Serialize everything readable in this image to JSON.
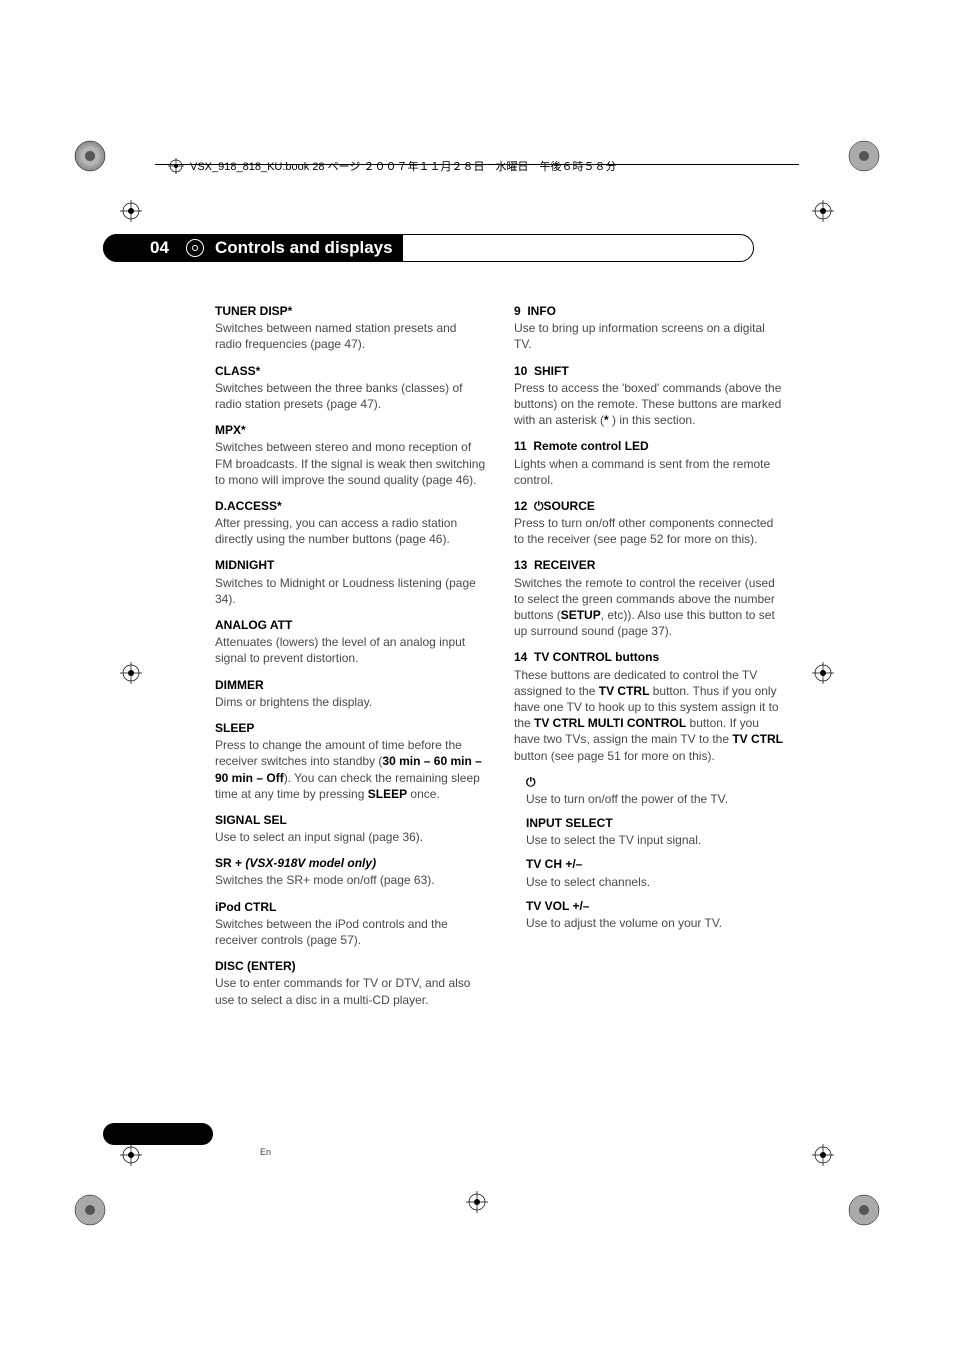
{
  "header": {
    "filename": "VSX_918_818_KU.book  28 ページ  ２００７年１１月２８日　水曜日　午後６時５８分"
  },
  "chapter": {
    "number": "04",
    "title": "Controls and displays"
  },
  "left_col": [
    {
      "title": "TUNER DISP*",
      "body": "Switches between named station presets and radio frequencies (page 47)."
    },
    {
      "title": "CLASS*",
      "body": "Switches between the three banks (classes) of radio station presets (page 47)."
    },
    {
      "title": "MPX*",
      "body": "Switches between stereo and mono reception of FM broadcasts. If the signal is weak then switching to mono will improve the sound quality (page 46)."
    },
    {
      "title": "D.ACCESS*",
      "body": "After pressing, you can access a radio station directly using the number buttons (page 46)."
    },
    {
      "title": "MIDNIGHT",
      "body": "Switches to Midnight or Loudness listening (page 34)."
    },
    {
      "title": "ANALOG ATT",
      "body": "Attenuates (lowers) the level of an analog input signal to prevent distortion."
    },
    {
      "title": "DIMMER",
      "body": "Dims or brightens the display."
    },
    {
      "title": "SLEEP",
      "body_html": "Press to change the amount of time before the receiver switches into standby (<b>30 min – 60 min – 90 min – Off</b>). You can check the remaining sleep time at any time by pressing <b>SLEEP</b> once."
    },
    {
      "title": "SIGNAL SEL",
      "body": "Use to select an input signal (page 36)."
    },
    {
      "title_html": "<b>SR +</b> <i>(VSX-918V model only)</i>",
      "body": "Switches the SR+ mode on/off (page 63)."
    },
    {
      "title": "iPod CTRL",
      "body": "Switches between the iPod controls and the receiver controls (page 57)."
    },
    {
      "title": "DISC (ENTER)",
      "body": "Use to enter commands for TV or DTV, and also use to select a disc in a multi-CD player."
    }
  ],
  "right_col": [
    {
      "num": "9",
      "title": "INFO",
      "body": "Use to bring up information screens on a digital TV."
    },
    {
      "num": "10",
      "title": "SHIFT",
      "body_html": "Press to access the 'boxed' commands (above the buttons) on the remote. These buttons are marked with an asterisk (<b>*</b> ) in this section."
    },
    {
      "num": "11",
      "title": "Remote control LED",
      "body": "Lights when a command is sent from the remote control."
    },
    {
      "num": "12",
      "title_html": "⏻<b>SOURCE</b>",
      "body": "Press to turn on/off other components connected to the receiver (see page 52 for more on this)."
    },
    {
      "num": "13",
      "title": "RECEIVER",
      "body_html": "Switches the remote to control the receiver (used to select the green commands above the number buttons (<b>SETUP</b>, etc)). Also use this button to set up surround sound (page 37)."
    },
    {
      "num": "14",
      "title": "TV CONTROL buttons",
      "body_html": "These buttons are dedicated to control the TV assigned to the <b>TV CTRL</b> button. Thus if you only have one TV to hook up to this system assign it to the <b>TV CTRL MULTI CONTROL</b> button. If you have two TVs, assign the main TV to the <b>TV CTRL</b> button (see page 51 for more on this)."
    }
  ],
  "sub_entries": [
    {
      "title": "⏻",
      "body": "Use to turn on/off the power of the TV."
    },
    {
      "title": "INPUT SELECT",
      "body": "Use to select the TV input signal."
    },
    {
      "title": "TV CH +/–",
      "body": "Use to select channels."
    },
    {
      "title": "TV VOL +/–",
      "body": "Use to adjust the volume on your TV."
    }
  ],
  "page": {
    "number": "28",
    "lang": "En"
  },
  "colors": {
    "text_body": "#4a4a4a",
    "text_bold": "#000000",
    "pill_bg": "#000000",
    "page_bg": "#ffffff"
  }
}
